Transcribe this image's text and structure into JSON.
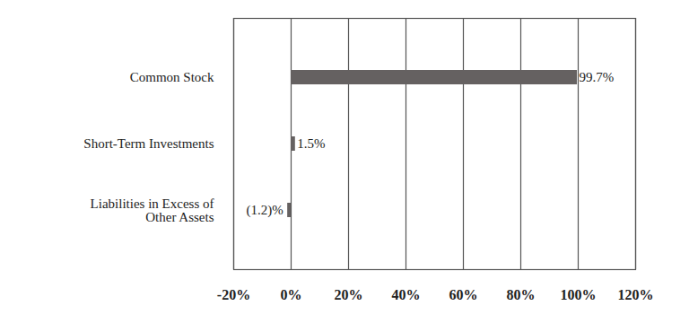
{
  "chart_data": {
    "type": "bar",
    "orientation": "horizontal",
    "categories": [
      "Common Stock",
      "Short-Term Investments",
      "Liabilities in Excess of Other Assets"
    ],
    "values": [
      99.7,
      1.5,
      -1.2
    ],
    "value_labels": [
      "99.7%",
      "1.5%",
      "(1.2)%"
    ],
    "data_labels": true,
    "color": "#656161",
    "xlim": [
      -20,
      120
    ],
    "xticks": [
      {
        "value": -20,
        "label": "-20%"
      },
      {
        "value": 0,
        "label": "0%"
      },
      {
        "value": 20,
        "label": "20%"
      },
      {
        "value": 40,
        "label": "40%"
      },
      {
        "value": 60,
        "label": "60%"
      },
      {
        "value": 80,
        "label": "80%"
      },
      {
        "value": 100,
        "label": "100%"
      },
      {
        "value": 120,
        "label": "120%"
      }
    ],
    "grid": true
  }
}
